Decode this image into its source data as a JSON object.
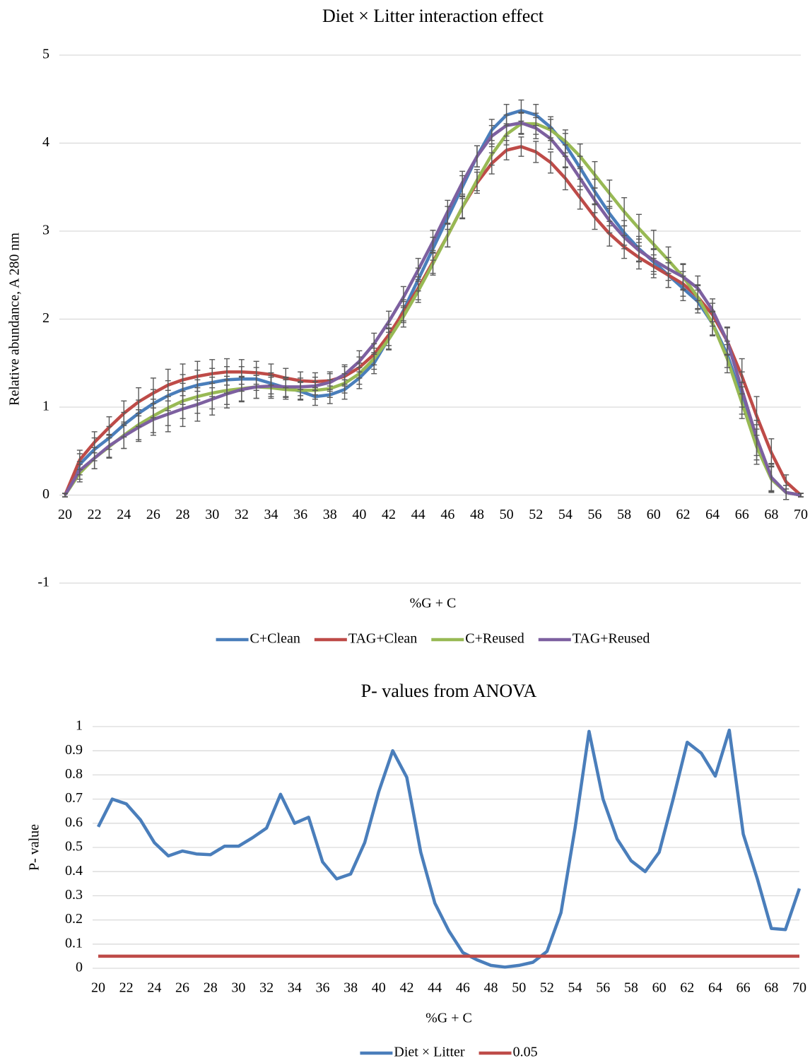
{
  "chart_data": [
    {
      "type": "line",
      "title": "Diet × Litter interaction effect",
      "x_label": "%G + C",
      "y_label": "Relative abundance, A 280 nm",
      "x": [
        20,
        21,
        22,
        23,
        24,
        25,
        26,
        27,
        28,
        29,
        30,
        31,
        32,
        33,
        34,
        35,
        36,
        37,
        38,
        39,
        40,
        41,
        42,
        43,
        44,
        45,
        46,
        47,
        48,
        49,
        50,
        51,
        52,
        53,
        54,
        55,
        56,
        57,
        58,
        59,
        60,
        61,
        62,
        63,
        64,
        65,
        66,
        67,
        68,
        69,
        70
      ],
      "xlim": [
        20,
        70
      ],
      "xticks": [
        20,
        22,
        24,
        26,
        28,
        30,
        32,
        34,
        36,
        38,
        40,
        42,
        44,
        46,
        48,
        50,
        52,
        54,
        56,
        58,
        60,
        62,
        64,
        66,
        68,
        70
      ],
      "ylim": [
        -1,
        5
      ],
      "yticks": [
        -1,
        0,
        1,
        2,
        3,
        4,
        5
      ],
      "grid": true,
      "legend": "bottom",
      "series": [
        {
          "name": "C+Clean",
          "color": "#4a7ebb",
          "values": [
            0,
            0.35,
            0.52,
            0.65,
            0.8,
            0.93,
            1.04,
            1.13,
            1.2,
            1.25,
            1.28,
            1.31,
            1.32,
            1.32,
            1.27,
            1.22,
            1.18,
            1.12,
            1.14,
            1.2,
            1.33,
            1.5,
            1.78,
            2.1,
            2.45,
            2.8,
            3.15,
            3.5,
            3.85,
            4.15,
            4.32,
            4.37,
            4.32,
            4.18,
            3.98,
            3.72,
            3.45,
            3.2,
            2.98,
            2.8,
            2.65,
            2.5,
            2.35,
            2.2,
            1.95,
            1.6,
            1.1,
            0.6,
            0.2,
            0.03,
            0
          ],
          "errors": [
            0.02,
            0.12,
            0.13,
            0.13,
            0.14,
            0.15,
            0.16,
            0.17,
            0.17,
            0.17,
            0.16,
            0.15,
            0.14,
            0.13,
            0.12,
            0.11,
            0.1,
            0.1,
            0.1,
            0.11,
            0.12,
            0.12,
            0.12,
            0.12,
            0.13,
            0.13,
            0.13,
            0.13,
            0.12,
            0.12,
            0.12,
            0.12,
            0.12,
            0.12,
            0.13,
            0.13,
            0.14,
            0.14,
            0.14,
            0.14,
            0.14,
            0.14,
            0.14,
            0.13,
            0.13,
            0.15,
            0.18,
            0.2,
            0.15,
            0.08,
            0.02
          ]
        },
        {
          "name": "TAG+Clean",
          "color": "#be4b48",
          "values": [
            0,
            0.4,
            0.6,
            0.77,
            0.93,
            1.06,
            1.16,
            1.25,
            1.31,
            1.35,
            1.38,
            1.4,
            1.4,
            1.39,
            1.37,
            1.33,
            1.3,
            1.29,
            1.3,
            1.35,
            1.45,
            1.6,
            1.82,
            2.08,
            2.35,
            2.65,
            2.95,
            3.27,
            3.55,
            3.77,
            3.92,
            3.96,
            3.9,
            3.78,
            3.6,
            3.38,
            3.16,
            2.97,
            2.82,
            2.7,
            2.6,
            2.5,
            2.4,
            2.25,
            2.05,
            1.75,
            1.35,
            0.9,
            0.48,
            0.15,
            0
          ],
          "errors": [
            0.02,
            0.11,
            0.12,
            0.12,
            0.14,
            0.16,
            0.17,
            0.18,
            0.18,
            0.17,
            0.16,
            0.15,
            0.14,
            0.13,
            0.12,
            0.11,
            0.1,
            0.1,
            0.1,
            0.11,
            0.12,
            0.12,
            0.12,
            0.12,
            0.13,
            0.13,
            0.13,
            0.12,
            0.12,
            0.12,
            0.11,
            0.11,
            0.12,
            0.12,
            0.13,
            0.13,
            0.14,
            0.14,
            0.13,
            0.13,
            0.13,
            0.14,
            0.14,
            0.13,
            0.13,
            0.15,
            0.2,
            0.22,
            0.16,
            0.08,
            0.02
          ]
        },
        {
          "name": "C+Reused",
          "color": "#98b954",
          "values": [
            0,
            0.25,
            0.42,
            0.55,
            0.68,
            0.8,
            0.9,
            0.99,
            1.07,
            1.12,
            1.16,
            1.19,
            1.21,
            1.23,
            1.22,
            1.2,
            1.19,
            1.19,
            1.21,
            1.27,
            1.38,
            1.55,
            1.77,
            2.03,
            2.32,
            2.63,
            2.95,
            3.27,
            3.58,
            3.87,
            4.1,
            4.22,
            4.22,
            4.15,
            4.02,
            3.85,
            3.64,
            3.43,
            3.22,
            3.03,
            2.85,
            2.67,
            2.48,
            2.25,
            1.95,
            1.55,
            1.05,
            0.55,
            0.18,
            0.03,
            0
          ],
          "errors": [
            0.02,
            0.1,
            0.12,
            0.13,
            0.15,
            0.17,
            0.19,
            0.2,
            0.2,
            0.19,
            0.18,
            0.16,
            0.14,
            0.13,
            0.12,
            0.11,
            0.1,
            0.1,
            0.1,
            0.11,
            0.12,
            0.12,
            0.12,
            0.12,
            0.13,
            0.13,
            0.13,
            0.13,
            0.12,
            0.12,
            0.12,
            0.12,
            0.12,
            0.12,
            0.13,
            0.14,
            0.15,
            0.15,
            0.16,
            0.16,
            0.16,
            0.15,
            0.15,
            0.14,
            0.14,
            0.16,
            0.18,
            0.2,
            0.15,
            0.08,
            0.02
          ]
        },
        {
          "name": "TAG+Reused",
          "color": "#7d60a0",
          "values": [
            0,
            0.28,
            0.42,
            0.56,
            0.67,
            0.77,
            0.86,
            0.92,
            0.98,
            1.03,
            1.09,
            1.15,
            1.2,
            1.23,
            1.24,
            1.23,
            1.23,
            1.24,
            1.28,
            1.37,
            1.52,
            1.72,
            1.97,
            2.25,
            2.56,
            2.88,
            3.22,
            3.55,
            3.85,
            4.08,
            4.2,
            4.23,
            4.17,
            4.05,
            3.85,
            3.6,
            3.35,
            3.12,
            2.93,
            2.78,
            2.67,
            2.57,
            2.48,
            2.35,
            2.1,
            1.75,
            1.2,
            0.65,
            0.2,
            0.03,
            0
          ],
          "errors": [
            0.02,
            0.1,
            0.12,
            0.13,
            0.14,
            0.16,
            0.18,
            0.2,
            0.2,
            0.19,
            0.18,
            0.16,
            0.14,
            0.13,
            0.12,
            0.11,
            0.1,
            0.1,
            0.1,
            0.11,
            0.12,
            0.12,
            0.12,
            0.12,
            0.13,
            0.13,
            0.13,
            0.13,
            0.12,
            0.12,
            0.12,
            0.12,
            0.12,
            0.12,
            0.13,
            0.13,
            0.14,
            0.14,
            0.13,
            0.13,
            0.13,
            0.13,
            0.14,
            0.14,
            0.13,
            0.16,
            0.2,
            0.2,
            0.16,
            0.08,
            0.02
          ]
        }
      ]
    },
    {
      "type": "line",
      "title": "P- values from ANOVA",
      "x_label": "%G + C",
      "y_label": "P- value",
      "x": [
        20,
        21,
        22,
        23,
        24,
        25,
        26,
        27,
        28,
        29,
        30,
        31,
        32,
        33,
        34,
        35,
        36,
        37,
        38,
        39,
        40,
        41,
        42,
        43,
        44,
        45,
        46,
        47,
        48,
        49,
        50,
        51,
        52,
        53,
        54,
        55,
        56,
        57,
        58,
        59,
        60,
        61,
        62,
        63,
        64,
        65,
        66,
        67,
        68,
        69,
        70
      ],
      "xlim": [
        20,
        70
      ],
      "xticks": [
        20,
        22,
        24,
        26,
        28,
        30,
        32,
        34,
        36,
        38,
        40,
        42,
        44,
        46,
        48,
        50,
        52,
        54,
        56,
        58,
        60,
        62,
        64,
        66,
        68,
        70
      ],
      "ylim": [
        0,
        1
      ],
      "yticks": [
        0,
        0.1,
        0.2,
        0.3,
        0.4,
        0.5,
        0.6,
        0.7,
        0.8,
        0.9,
        1
      ],
      "grid": true,
      "legend": "bottom",
      "series": [
        {
          "name": "Diet × Litter",
          "color": "#4a7ebb",
          "values": [
            0.585,
            0.7,
            0.68,
            0.615,
            0.52,
            0.465,
            0.485,
            0.473,
            0.47,
            0.505,
            0.505,
            0.54,
            0.58,
            0.72,
            0.6,
            0.625,
            0.44,
            0.37,
            0.39,
            0.52,
            0.73,
            0.9,
            0.79,
            0.48,
            0.27,
            0.155,
            0.065,
            0.035,
            0.012,
            0.005,
            0.012,
            0.025,
            0.07,
            0.23,
            0.58,
            0.98,
            0.7,
            0.535,
            0.445,
            0.4,
            0.48,
            0.7,
            0.935,
            0.89,
            0.795,
            0.985,
            0.555,
            0.37,
            0.165,
            0.16,
            0.33
          ]
        },
        {
          "name": "0.05",
          "color": "#be4b48",
          "values": [
            0.05,
            0.05,
            0.05,
            0.05,
            0.05,
            0.05,
            0.05,
            0.05,
            0.05,
            0.05,
            0.05,
            0.05,
            0.05,
            0.05,
            0.05,
            0.05,
            0.05,
            0.05,
            0.05,
            0.05,
            0.05,
            0.05,
            0.05,
            0.05,
            0.05,
            0.05,
            0.05,
            0.05,
            0.05,
            0.05,
            0.05,
            0.05,
            0.05,
            0.05,
            0.05,
            0.05,
            0.05,
            0.05,
            0.05,
            0.05,
            0.05,
            0.05,
            0.05,
            0.05,
            0.05,
            0.05,
            0.05,
            0.05,
            0.05,
            0.05,
            0.05
          ]
        }
      ]
    }
  ]
}
